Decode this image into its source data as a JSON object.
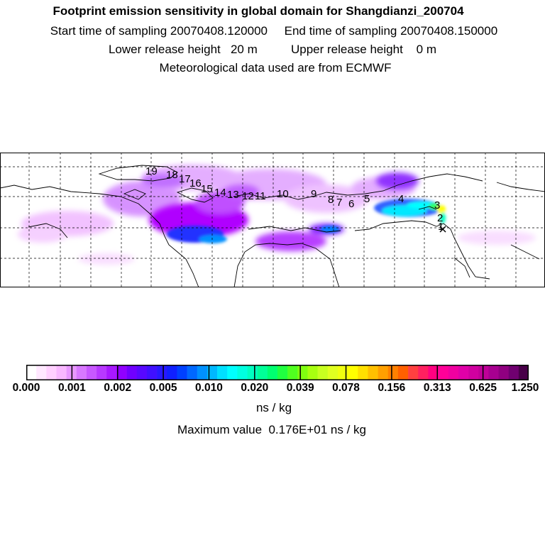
{
  "header": {
    "title": "Footprint emission sensitivity in global domain for Shangdianzi_200704",
    "sampling": "Start time of sampling 20070408.120000     End time of sampling 20070408.150000",
    "release": "Lower release height   20 m          Upper release height    0 m",
    "meteo": "Meteorological data used are from ECMWF"
  },
  "map": {
    "trajectory_labels": [
      "1",
      "2",
      "3",
      "4",
      "5",
      "6",
      "7",
      "8",
      "9",
      "10",
      "11",
      "12",
      "13",
      "14",
      "15",
      "16",
      "17",
      "18",
      "19"
    ],
    "colors": {
      "light_purple": "#e8a8ff",
      "violet": "#b000ff",
      "blue": "#3030ff",
      "cyan": "#00e8ff",
      "green": "#30ff30",
      "yellow": "#ffff00",
      "coast": "#000000"
    }
  },
  "colorbar": {
    "colors": [
      "#ffffff",
      "#ffe8ff",
      "#ffd0ff",
      "#f8b8ff",
      "#e898ff",
      "#d878ff",
      "#c858ff",
      "#b838ff",
      "#a818ff",
      "#9000ff",
      "#7000ff",
      "#5808ff",
      "#4010ff",
      "#2818ff",
      "#1020ff",
      "#0040ff",
      "#0068ff",
      "#0090ff",
      "#00b8ff",
      "#00e0ff",
      "#00ffff",
      "#00ffe0",
      "#00ffc0",
      "#00ff98",
      "#00ff70",
      "#20ff40",
      "#50ff20",
      "#80ff10",
      "#a8ff10",
      "#c8ff20",
      "#e0ff20",
      "#f0ff10",
      "#ffff00",
      "#ffe000",
      "#ffc000",
      "#ffa000",
      "#ff8000",
      "#ff6000",
      "#ff4040",
      "#ff2060",
      "#ff0080",
      "#ff0098",
      "#f000a0",
      "#e000a8",
      "#d000a0",
      "#c00098",
      "#a80090",
      "#900080",
      "#700070",
      "#480048"
    ],
    "ticks": [
      "0.000",
      "0.001",
      "0.002",
      "0.005",
      "0.010",
      "0.020",
      "0.039",
      "0.078",
      "0.156",
      "0.313",
      "0.625",
      "1.250"
    ],
    "unit": "ns / kg",
    "max_value": "Maximum value  0.176E+01 ns / kg"
  }
}
